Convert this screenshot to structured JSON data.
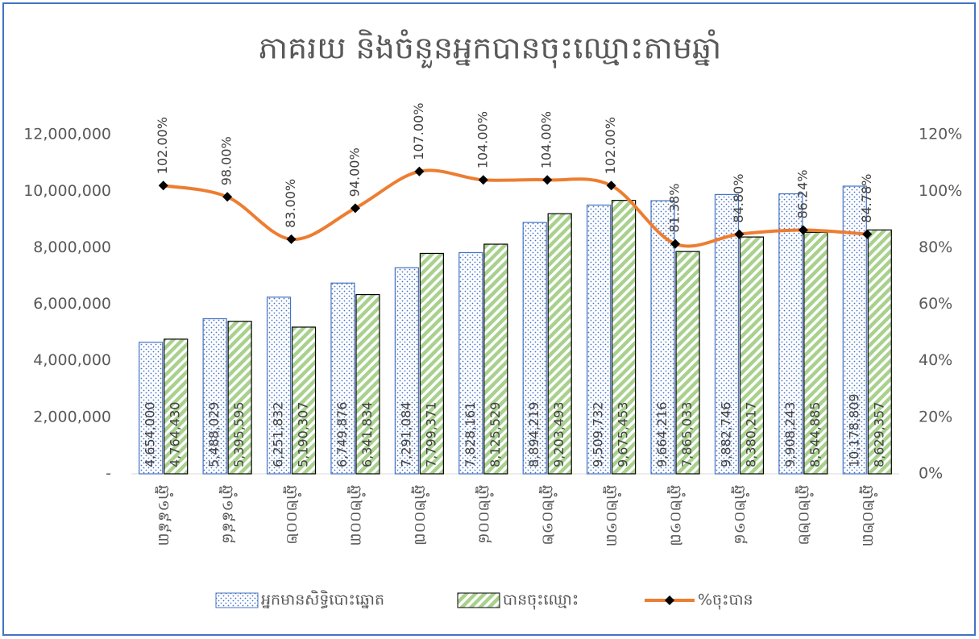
{
  "chart_data": {
    "type": "bar_line",
    "title": "ភាគរយ និងចំនួនអ្នកបានចុះឈ្មោះតាមឆ្នាំ",
    "categories": [
      "ឆ្នាំ១៩៩៣",
      "ឆ្នាំ១៩៩៨",
      "ឆ្នាំ២០០២",
      "ឆ្នាំ២០០៣",
      "ឆ្នាំ២០០៧",
      "ឆ្នាំ២០០៨",
      "ឆ្នាំ២០១២",
      "ឆ្នាំ២០១៣",
      "ឆ្នាំ២០១៧",
      "ឆ្នាំ២០១៨",
      "ឆ្នាំ២០២២",
      "ឆ្នាំ២០២៣"
    ],
    "series": [
      {
        "name": "អ្នកមានសិទ្ធិបោះឆ្នោត",
        "type": "bar",
        "color": "#4472c4",
        "values": [
          4654000,
          5488029,
          6251832,
          6749876,
          7291084,
          7828161,
          8894219,
          9509732,
          9664216,
          9882746,
          9908243,
          10178809
        ],
        "value_labels": [
          "4,654,000",
          "5,488,029",
          "6,251,832",
          "6,749,876",
          "7,291,084",
          "7,828,161",
          "8,894,219",
          "9,509,732",
          "9,664,216",
          "9,882,746",
          "9,908,243",
          "10,178,809"
        ]
      },
      {
        "name": "បានចុះឈ្មោះ",
        "type": "bar",
        "color": "#70ad47",
        "values": [
          4764430,
          5395595,
          5190307,
          6341834,
          7799371,
          8125529,
          9203493,
          9675453,
          7865033,
          8380217,
          8544885,
          8629357
        ],
        "value_labels": [
          "4,764,430",
          "5,395,595",
          "5,190,307",
          "6,341,834",
          "7,799,371",
          "8,125,529",
          "9,203,493",
          "9,675,453",
          "7,865,033",
          "8,380,217",
          "8,544,885",
          "8,629,357"
        ]
      },
      {
        "name": "%ចុះបាន",
        "type": "line",
        "axis": "y2",
        "color": "#ed7d31",
        "values": [
          102,
          98,
          83,
          94,
          107,
          104,
          104,
          102,
          81.38,
          84.8,
          86.24,
          84.78
        ],
        "value_labels": [
          "102.00%",
          "98.00%",
          "83.00%",
          "94.00%",
          "107.00%",
          "104.00%",
          "104.00%",
          "102.00%",
          "81.38%",
          "84.80%",
          "86.24%",
          "84.78%"
        ]
      }
    ],
    "ylim": [
      0,
      14000000
    ],
    "yticks": [
      {
        "value": 0,
        "label": "-"
      },
      {
        "value": 2000000,
        "label": "2,000,000"
      },
      {
        "value": 4000000,
        "label": "4,000,000"
      },
      {
        "value": 6000000,
        "label": "6,000,000"
      },
      {
        "value": 8000000,
        "label": "8,000,000"
      },
      {
        "value": 10000000,
        "label": "10,000,000"
      },
      {
        "value": 12000000,
        "label": "12,000,000"
      }
    ],
    "y2lim": [
      0,
      140
    ],
    "y2ticks": [
      {
        "value": 0,
        "label": "0%"
      },
      {
        "value": 20,
        "label": "20%"
      },
      {
        "value": 40,
        "label": "40%"
      },
      {
        "value": 60,
        "label": "60%"
      },
      {
        "value": 80,
        "label": "80%"
      },
      {
        "value": 100,
        "label": "100%"
      },
      {
        "value": 120,
        "label": "120%"
      }
    ],
    "legend": "bottom"
  }
}
